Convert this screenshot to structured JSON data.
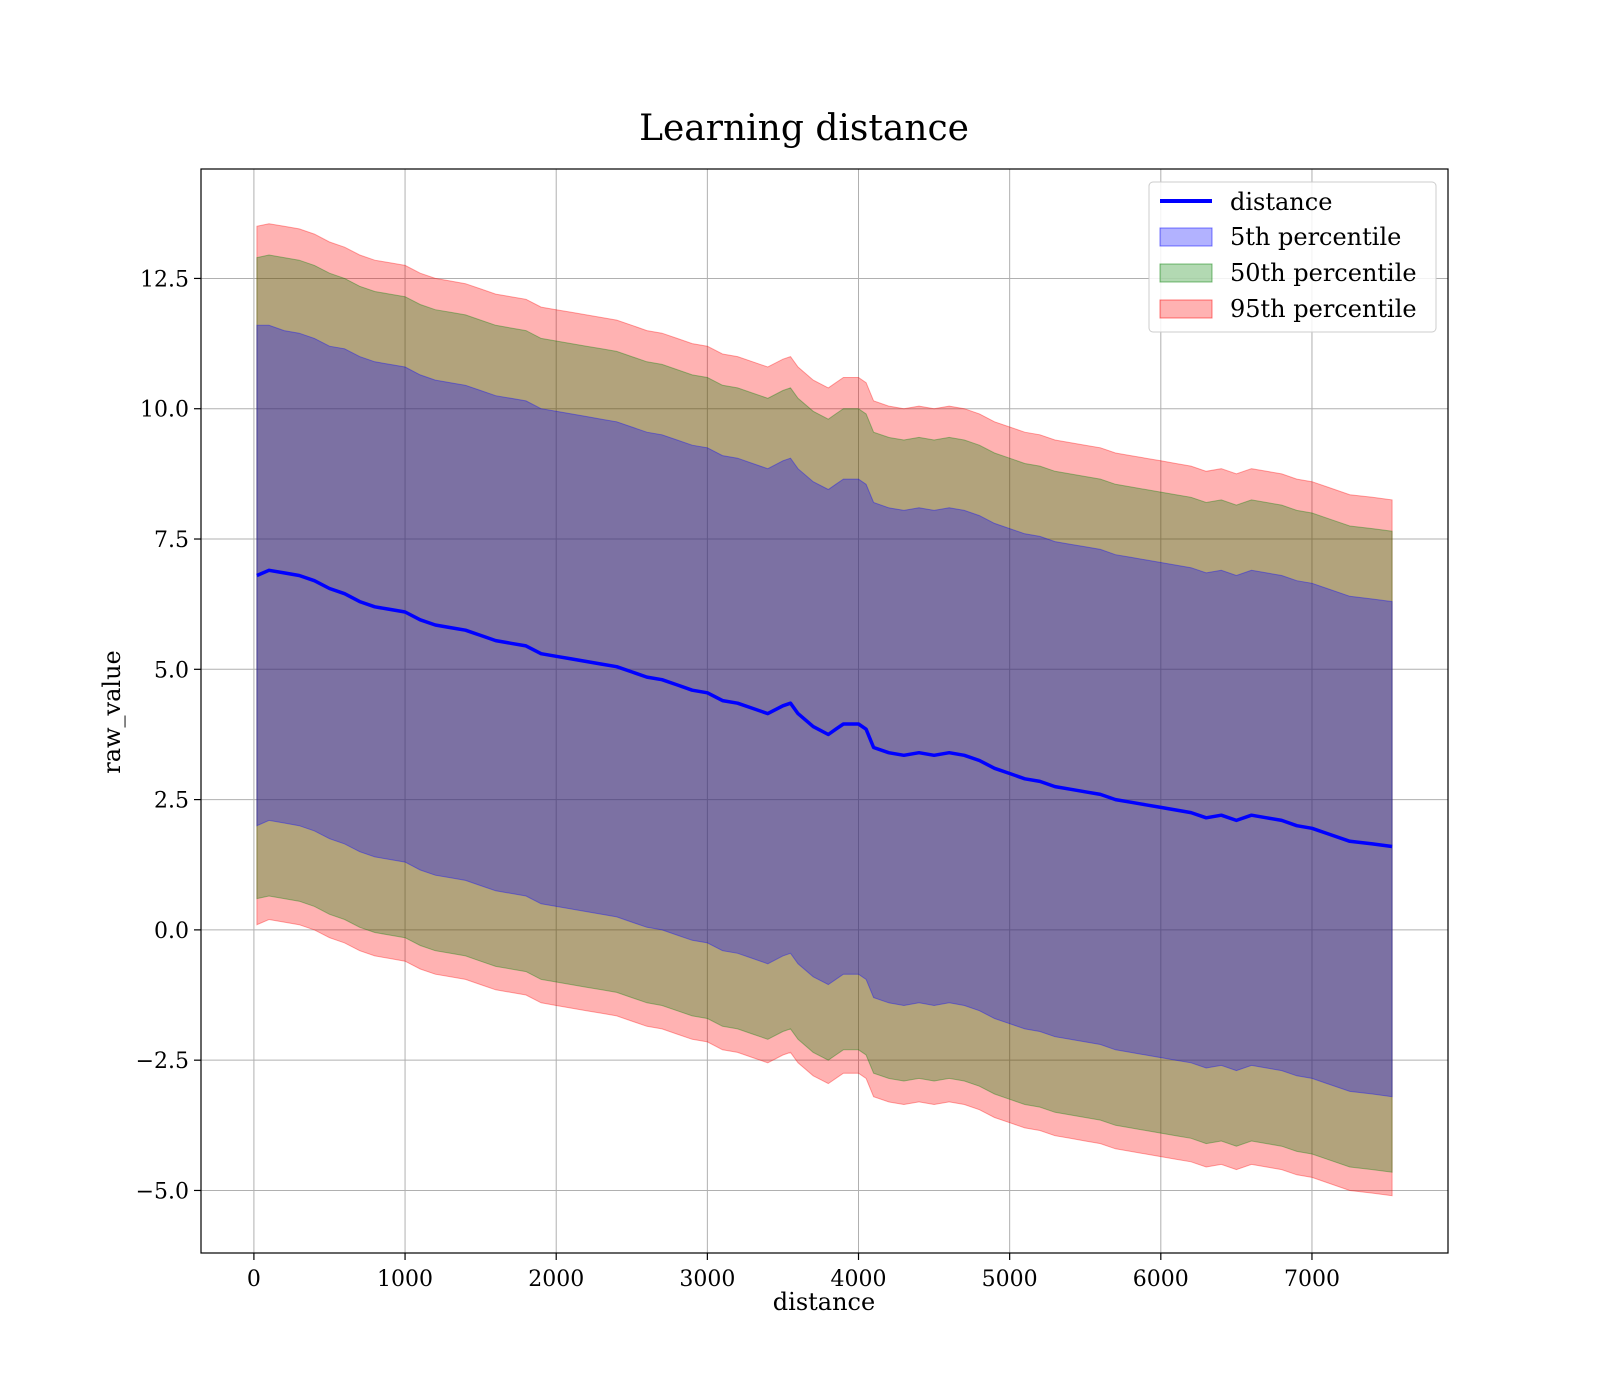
{
  "chart_data": {
    "type": "line",
    "title": "Learning distance",
    "xlabel": "distance",
    "ylabel": "raw_value",
    "xlim": [
      -350,
      7900
    ],
    "ylim": [
      -6.2,
      14.6
    ],
    "xticks": [
      0,
      1000,
      2000,
      3000,
      4000,
      5000,
      6000,
      7000
    ],
    "yticks": [
      -5.0,
      -2.5,
      0.0,
      2.5,
      5.0,
      7.5,
      10.0,
      12.5
    ],
    "xtick_labels": [
      "0",
      "1000",
      "2000",
      "3000",
      "4000",
      "5000",
      "6000",
      "7000"
    ],
    "ytick_labels": [
      "−5.0",
      "−2.5",
      "0.0",
      "2.5",
      "5.0",
      "7.5",
      "10.0",
      "12.5"
    ],
    "grid": true,
    "legend_position": "top-right",
    "x": [
      20,
      100,
      200,
      300,
      400,
      500,
      600,
      700,
      800,
      900,
      1000,
      1100,
      1200,
      1300,
      1400,
      1500,
      1600,
      1700,
      1800,
      1900,
      2000,
      2100,
      2200,
      2300,
      2400,
      2500,
      2600,
      2700,
      2800,
      2900,
      3000,
      3100,
      3200,
      3300,
      3400,
      3500,
      3550,
      3600,
      3700,
      3800,
      3850,
      3900,
      4000,
      4050,
      4100,
      4200,
      4300,
      4400,
      4500,
      4600,
      4700,
      4800,
      4900,
      5000,
      5100,
      5200,
      5300,
      5400,
      5500,
      5600,
      5700,
      5800,
      5900,
      6000,
      6100,
      6200,
      6300,
      6400,
      6500,
      6600,
      6700,
      6800,
      6900,
      7000,
      7100,
      7250,
      7400,
      7530
    ],
    "series": [
      {
        "name": "distance",
        "color": "#0000ff",
        "values": [
          6.8,
          6.9,
          6.85,
          6.8,
          6.7,
          6.55,
          6.45,
          6.3,
          6.2,
          6.15,
          6.1,
          5.95,
          5.85,
          5.8,
          5.75,
          5.65,
          5.55,
          5.5,
          5.45,
          5.3,
          5.25,
          5.2,
          5.15,
          5.1,
          5.05,
          4.95,
          4.85,
          4.8,
          4.7,
          4.6,
          4.55,
          4.4,
          4.35,
          4.25,
          4.15,
          4.3,
          4.35,
          4.15,
          3.9,
          3.75,
          3.85,
          3.95,
          3.95,
          3.85,
          3.5,
          3.4,
          3.35,
          3.4,
          3.35,
          3.4,
          3.35,
          3.25,
          3.1,
          3.0,
          2.9,
          2.85,
          2.75,
          2.7,
          2.65,
          2.6,
          2.5,
          2.45,
          2.4,
          2.35,
          2.3,
          2.25,
          2.15,
          2.2,
          2.1,
          2.2,
          2.15,
          2.1,
          2.0,
          1.95,
          1.85,
          1.7,
          1.65,
          1.6
        ]
      },
      {
        "name": "5th percentile",
        "color": "#0000ff",
        "upper": [
          11.6,
          11.6,
          11.5,
          11.45,
          11.35,
          11.2,
          11.15,
          11.0,
          10.9,
          10.85,
          10.8,
          10.65,
          10.55,
          10.5,
          10.45,
          10.35,
          10.25,
          10.2,
          10.15,
          10.0,
          9.95,
          9.9,
          9.85,
          9.8,
          9.75,
          9.65,
          9.55,
          9.5,
          9.4,
          9.3,
          9.25,
          9.1,
          9.05,
          8.95,
          8.85,
          9.0,
          9.05,
          8.85,
          8.6,
          8.45,
          8.55,
          8.65,
          8.65,
          8.55,
          8.2,
          8.1,
          8.05,
          8.1,
          8.05,
          8.1,
          8.05,
          7.95,
          7.8,
          7.7,
          7.6,
          7.55,
          7.45,
          7.4,
          7.35,
          7.3,
          7.2,
          7.15,
          7.1,
          7.05,
          7.0,
          6.95,
          6.85,
          6.9,
          6.8,
          6.9,
          6.85,
          6.8,
          6.7,
          6.65,
          6.55,
          6.4,
          6.35,
          6.3
        ],
        "lower": [
          2.0,
          2.1,
          2.05,
          2.0,
          1.9,
          1.75,
          1.65,
          1.5,
          1.4,
          1.35,
          1.3,
          1.15,
          1.05,
          1.0,
          0.95,
          0.85,
          0.75,
          0.7,
          0.65,
          0.5,
          0.45,
          0.4,
          0.35,
          0.3,
          0.25,
          0.15,
          0.05,
          0.0,
          -0.1,
          -0.2,
          -0.25,
          -0.4,
          -0.45,
          -0.55,
          -0.65,
          -0.5,
          -0.45,
          -0.65,
          -0.9,
          -1.05,
          -0.95,
          -0.85,
          -0.85,
          -0.95,
          -1.3,
          -1.4,
          -1.45,
          -1.4,
          -1.45,
          -1.4,
          -1.45,
          -1.55,
          -1.7,
          -1.8,
          -1.9,
          -1.95,
          -2.05,
          -2.1,
          -2.15,
          -2.2,
          -2.3,
          -2.35,
          -2.4,
          -2.45,
          -2.5,
          -2.55,
          -2.65,
          -2.6,
          -2.7,
          -2.6,
          -2.65,
          -2.7,
          -2.8,
          -2.85,
          -2.95,
          -3.1,
          -3.15,
          -3.2
        ]
      },
      {
        "name": "50th percentile",
        "color": "#008000",
        "upper": [
          12.9,
          12.95,
          12.9,
          12.85,
          12.75,
          12.6,
          12.5,
          12.35,
          12.25,
          12.2,
          12.15,
          12.0,
          11.9,
          11.85,
          11.8,
          11.7,
          11.6,
          11.55,
          11.5,
          11.35,
          11.3,
          11.25,
          11.2,
          11.15,
          11.1,
          11.0,
          10.9,
          10.85,
          10.75,
          10.65,
          10.6,
          10.45,
          10.4,
          10.3,
          10.2,
          10.35,
          10.4,
          10.2,
          9.95,
          9.8,
          9.9,
          10.0,
          10.0,
          9.9,
          9.55,
          9.45,
          9.4,
          9.45,
          9.4,
          9.45,
          9.4,
          9.3,
          9.15,
          9.05,
          8.95,
          8.9,
          8.8,
          8.75,
          8.7,
          8.65,
          8.55,
          8.5,
          8.45,
          8.4,
          8.35,
          8.3,
          8.2,
          8.25,
          8.15,
          8.25,
          8.2,
          8.15,
          8.05,
          8.0,
          7.9,
          7.75,
          7.7,
          7.65
        ],
        "lower": [
          0.6,
          0.65,
          0.6,
          0.55,
          0.45,
          0.3,
          0.2,
          0.05,
          -0.05,
          -0.1,
          -0.15,
          -0.3,
          -0.4,
          -0.45,
          -0.5,
          -0.6,
          -0.7,
          -0.75,
          -0.8,
          -0.95,
          -1.0,
          -1.05,
          -1.1,
          -1.15,
          -1.2,
          -1.3,
          -1.4,
          -1.45,
          -1.55,
          -1.65,
          -1.7,
          -1.85,
          -1.9,
          -2.0,
          -2.1,
          -1.95,
          -1.9,
          -2.1,
          -2.35,
          -2.5,
          -2.4,
          -2.3,
          -2.3,
          -2.4,
          -2.75,
          -2.85,
          -2.9,
          -2.85,
          -2.9,
          -2.85,
          -2.9,
          -3.0,
          -3.15,
          -3.25,
          -3.35,
          -3.4,
          -3.5,
          -3.55,
          -3.6,
          -3.65,
          -3.75,
          -3.8,
          -3.85,
          -3.9,
          -3.95,
          -4.0,
          -4.1,
          -4.05,
          -4.15,
          -4.05,
          -4.1,
          -4.15,
          -4.25,
          -4.3,
          -4.4,
          -4.55,
          -4.6,
          -4.65
        ]
      },
      {
        "name": "95th percentile",
        "color": "#ff0000",
        "upper": [
          13.5,
          13.55,
          13.5,
          13.45,
          13.35,
          13.2,
          13.1,
          12.95,
          12.85,
          12.8,
          12.75,
          12.6,
          12.5,
          12.45,
          12.4,
          12.3,
          12.2,
          12.15,
          12.1,
          11.95,
          11.9,
          11.85,
          11.8,
          11.75,
          11.7,
          11.6,
          11.5,
          11.45,
          11.35,
          11.25,
          11.2,
          11.05,
          11.0,
          10.9,
          10.8,
          10.95,
          11.0,
          10.8,
          10.55,
          10.4,
          10.5,
          10.6,
          10.6,
          10.5,
          10.15,
          10.05,
          10.0,
          10.05,
          10.0,
          10.05,
          10.0,
          9.9,
          9.75,
          9.65,
          9.55,
          9.5,
          9.4,
          9.35,
          9.3,
          9.25,
          9.15,
          9.1,
          9.05,
          9.0,
          8.95,
          8.9,
          8.8,
          8.85,
          8.75,
          8.85,
          8.8,
          8.75,
          8.65,
          8.6,
          8.5,
          8.35,
          8.3,
          8.25
        ],
        "lower": [
          0.1,
          0.2,
          0.15,
          0.1,
          0.0,
          -0.15,
          -0.25,
          -0.4,
          -0.5,
          -0.55,
          -0.6,
          -0.75,
          -0.85,
          -0.9,
          -0.95,
          -1.05,
          -1.15,
          -1.2,
          -1.25,
          -1.4,
          -1.45,
          -1.5,
          -1.55,
          -1.6,
          -1.65,
          -1.75,
          -1.85,
          -1.9,
          -2.0,
          -2.1,
          -2.15,
          -2.3,
          -2.35,
          -2.45,
          -2.55,
          -2.4,
          -2.35,
          -2.55,
          -2.8,
          -2.95,
          -2.85,
          -2.75,
          -2.75,
          -2.85,
          -3.2,
          -3.3,
          -3.35,
          -3.3,
          -3.35,
          -3.3,
          -3.35,
          -3.45,
          -3.6,
          -3.7,
          -3.8,
          -3.85,
          -3.95,
          -4.0,
          -4.05,
          -4.1,
          -4.2,
          -4.25,
          -4.3,
          -4.35,
          -4.4,
          -4.45,
          -4.55,
          -4.5,
          -4.6,
          -4.5,
          -4.55,
          -4.6,
          -4.7,
          -4.75,
          -4.85,
          -5.0,
          -5.05,
          -5.1
        ]
      }
    ]
  }
}
